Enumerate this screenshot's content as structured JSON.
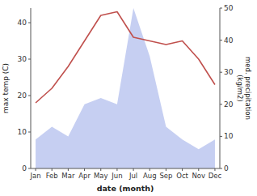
{
  "chart_data": {
    "type": "line",
    "categories": [
      "Jan",
      "Feb",
      "Mar",
      "Apr",
      "May",
      "Jun",
      "Jul",
      "Aug",
      "Sep",
      "Oct",
      "Nov",
      "Dec"
    ],
    "series": [
      {
        "type": "area",
        "color": "#c6cff2",
        "axis": "y2",
        "values": [
          9,
          13,
          10,
          20,
          22,
          20,
          50,
          35,
          13,
          9,
          6,
          9
        ]
      },
      {
        "type": "line",
        "color": "#c0504d",
        "values": [
          18,
          22,
          28,
          35,
          42,
          43,
          36,
          35,
          34,
          35,
          30,
          23
        ]
      }
    ],
    "x_label": "date (month)",
    "y_label": "max temp (C)",
    "y2_label": "med. precipitation\n(kg/m2)",
    "ylim": [
      0,
      44
    ],
    "yticks": [
      0,
      10,
      20,
      30,
      40
    ],
    "y2lim": [
      0,
      50
    ],
    "y2ticks": [
      0,
      10,
      20,
      30,
      40,
      50
    ],
    "grid": false
  }
}
